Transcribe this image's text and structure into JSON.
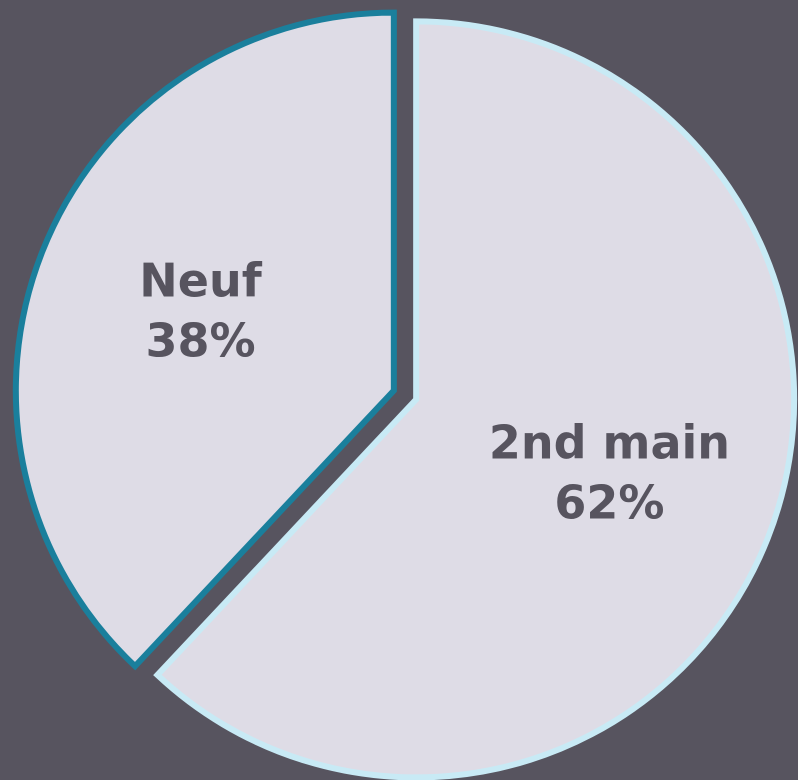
{
  "chart_data": {
    "type": "pie",
    "categories": [
      "Neuf",
      "2nd main"
    ],
    "values": [
      38,
      62
    ],
    "value_labels": [
      "38%",
      "62%"
    ],
    "colors": [
      "#dedce6",
      "#dedce6"
    ],
    "edge_colors": [
      "#1a7f9c",
      "#c8eaf5"
    ]
  }
}
